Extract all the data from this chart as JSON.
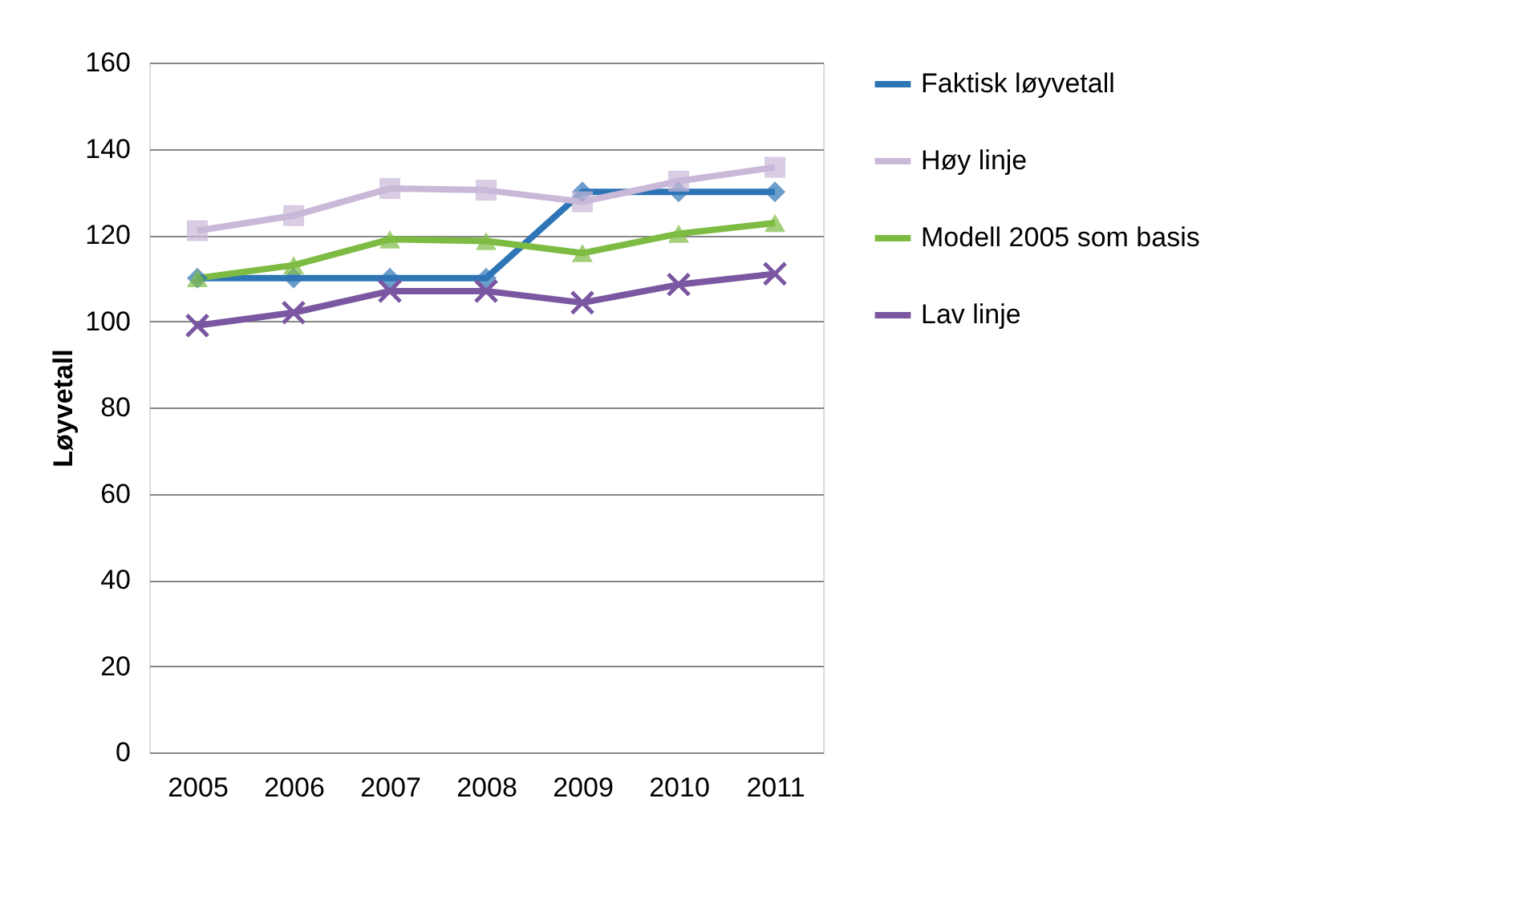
{
  "chart_data": {
    "type": "line",
    "ylabel": "Løyvetall",
    "categories": [
      "2005",
      "2006",
      "2007",
      "2008",
      "2009",
      "2010",
      "2011"
    ],
    "series": [
      {
        "name": "Faktisk løyvetall",
        "color": "#2e75b6",
        "marker": "diamond",
        "values": [
          110,
          110,
          110,
          110,
          130,
          130,
          130
        ]
      },
      {
        "name": "Høy linje",
        "color": "#c9b8d8",
        "marker": "square",
        "values": [
          121,
          124.5,
          130.8,
          130.4,
          127.7,
          132.5,
          135.7
        ]
      },
      {
        "name": "Modell 2005 som basis",
        "color": "#7dbb42",
        "marker": "triangle",
        "values": [
          110,
          113,
          119,
          118.6,
          115.8,
          120.3,
          122.8
        ]
      },
      {
        "name": "Lav linje",
        "color": "#7a57a0",
        "marker": "cross",
        "values": [
          99,
          102,
          107,
          107,
          104.3,
          108.5,
          111
        ]
      }
    ],
    "ylim": [
      0,
      160
    ],
    "yticks": [
      0,
      20,
      40,
      60,
      80,
      100,
      120,
      140,
      160
    ],
    "grid": "y",
    "legend": "right",
    "line_style": "solid"
  }
}
